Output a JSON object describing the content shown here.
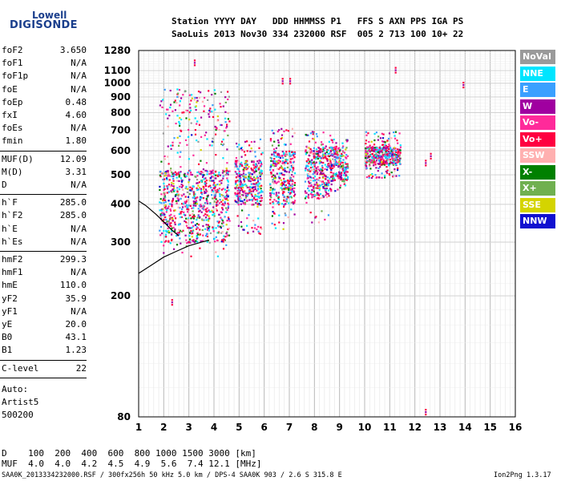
{
  "logo": {
    "line1": "Lowell",
    "line2": "DIGISONDE"
  },
  "header": {
    "columns": "Station YYYY DAY   DDD HHMMSS P1   FFS S AXN PPS IGA PS",
    "values": "SaoLuis 2013 Nov30 334 232000 RSF  005 2 713 100 10+ 22"
  },
  "params_group1": [
    {
      "name": "foF2",
      "value": "3.650"
    },
    {
      "name": "foF1",
      "value": "N/A"
    },
    {
      "name": "foF1p",
      "value": "N/A"
    },
    {
      "name": "foE",
      "value": "N/A"
    },
    {
      "name": "foEp",
      "value": "0.48"
    },
    {
      "name": "fxI",
      "value": "4.60"
    },
    {
      "name": "foEs",
      "value": "N/A"
    },
    {
      "name": "fmin",
      "value": "1.80"
    }
  ],
  "params_group2": [
    {
      "name": "MUF(D)",
      "value": "12.09"
    },
    {
      "name": "M(D)",
      "value": "3.31"
    },
    {
      "name": "D",
      "value": "N/A"
    }
  ],
  "params_group3": [
    {
      "name": "h`F",
      "value": "285.0"
    },
    {
      "name": "h`F2",
      "value": "285.0"
    },
    {
      "name": "h`E",
      "value": "N/A"
    },
    {
      "name": "h`Es",
      "value": "N/A"
    }
  ],
  "params_group4": [
    {
      "name": "hmF2",
      "value": "299.3"
    },
    {
      "name": "hmF1",
      "value": "N/A"
    },
    {
      "name": "hmE",
      "value": "110.0"
    },
    {
      "name": "yF2",
      "value": "35.9"
    },
    {
      "name": "yF1",
      "value": "N/A"
    },
    {
      "name": "yE",
      "value": "20.0"
    },
    {
      "name": "B0",
      "value": "43.1"
    },
    {
      "name": "B1",
      "value": "1.23"
    }
  ],
  "clevel": {
    "name": "C-level",
    "value": "22"
  },
  "auto": [
    "Auto:",
    "Artist5",
    "500200"
  ],
  "legend": [
    {
      "label": "NoVal",
      "color": "#9a9a9a"
    },
    {
      "label": "NNE",
      "color": "#00e5ff"
    },
    {
      "label": "E",
      "color": "#3aa0ff"
    },
    {
      "label": "W",
      "color": "#a000a0"
    },
    {
      "label": "Vo-",
      "color": "#ff2a9a"
    },
    {
      "label": "Vo+",
      "color": "#ff0040"
    },
    {
      "label": "SSW",
      "color": "#ffb0b0"
    },
    {
      "label": "X-",
      "color": "#008000"
    },
    {
      "label": "X+",
      "color": "#70b050"
    },
    {
      "label": "SSE",
      "color": "#d4d400"
    },
    {
      "label": "NNW",
      "color": "#1010d0"
    }
  ],
  "footer": {
    "d_row": "D    100  200  400  600  800 1000 1500 3000 [km]",
    "muf_row": "MUF  4.0  4.0  4.2  4.5  4.9  5.6  7.4 12.1 [MHz]",
    "info": "SAA0K_2013334232000.RSF / 300fx256h 50 kHz 5.0 km / DPS-4 SAA0K 903 / 2.6 S 315.8 E",
    "version": "Ion2Png 1.3.17"
  },
  "chart_data": {
    "type": "scatter",
    "xlabel": "",
    "ylabel": "",
    "xlim": [
      1,
      16
    ],
    "ylim": [
      80,
      1280
    ],
    "y_scale": "log",
    "x_ticks": [
      "1",
      "2",
      "3",
      "4",
      "5",
      "6",
      "7",
      "8",
      "9",
      "10",
      "11",
      "12",
      "13",
      "14",
      "15",
      "16"
    ],
    "y_ticks": [
      {
        "value": 80,
        "label": "80"
      },
      {
        "value": 200,
        "label": "200"
      },
      {
        "value": 300,
        "label": "300"
      },
      {
        "value": 400,
        "label": "400"
      },
      {
        "value": 500,
        "label": "500"
      },
      {
        "value": 600,
        "label": "600"
      },
      {
        "value": 700,
        "label": "700"
      },
      {
        "value": 800,
        "label": "800"
      },
      {
        "value": 900,
        "label": "900"
      },
      {
        "value": 1000,
        "label": "1000"
      },
      {
        "value": 1100,
        "label": "1100"
      },
      {
        "value": 1280,
        "label": "1280"
      }
    ],
    "grid": true,
    "legend_position": "right",
    "echo_clusters": [
      {
        "f": [
          1.8,
          4.6
        ],
        "h": [
          270,
          960
        ],
        "dense_h": [
          300,
          520
        ]
      },
      {
        "f": [
          4.8,
          5.9
        ],
        "h": [
          320,
          660
        ],
        "dense_h": [
          400,
          560
        ]
      },
      {
        "f": [
          6.2,
          7.2
        ],
        "h": [
          330,
          720
        ],
        "dense_h": [
          400,
          600
        ]
      },
      {
        "f": [
          7.6,
          8.6
        ],
        "h": [
          350,
          700
        ],
        "dense_h": [
          420,
          620
        ]
      },
      {
        "f": [
          8.6,
          9.3
        ],
        "h": [
          440,
          660
        ],
        "dense_h": [
          480,
          620
        ]
      },
      {
        "f": [
          10.0,
          11.4
        ],
        "h": [
          490,
          700
        ],
        "dense_h": [
          540,
          620
        ]
      }
    ],
    "isolated_echoes": [
      {
        "f": 2.3,
        "h": 195
      },
      {
        "f": 3.2,
        "h": 1195
      },
      {
        "f": 6.7,
        "h": 1040
      },
      {
        "f": 7.0,
        "h": 1040
      },
      {
        "f": 11.2,
        "h": 1130
      },
      {
        "f": 12.4,
        "h": 85
      },
      {
        "f": 12.4,
        "h": 560
      },
      {
        "f": 13.9,
        "h": 1010
      },
      {
        "f": 12.6,
        "h": 590
      }
    ],
    "profile_lines": [
      {
        "name": "lower",
        "points": [
          [
            1.0,
            237
          ],
          [
            1.5,
            252
          ],
          [
            2.0,
            268
          ],
          [
            2.5,
            280
          ],
          [
            3.0,
            292
          ],
          [
            3.5,
            300
          ],
          [
            3.8,
            305
          ]
        ]
      },
      {
        "name": "upper",
        "points": [
          [
            1.0,
            410
          ],
          [
            1.3,
            395
          ],
          [
            1.7,
            370
          ],
          [
            2.0,
            350
          ],
          [
            2.3,
            330
          ],
          [
            2.6,
            315
          ]
        ]
      }
    ]
  }
}
